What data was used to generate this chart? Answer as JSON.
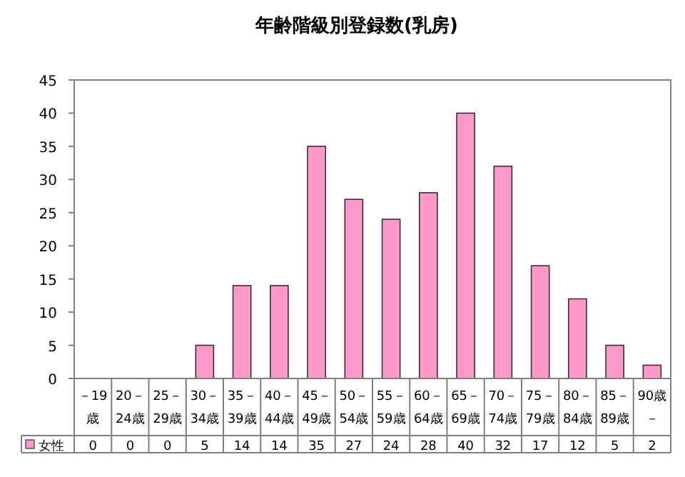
{
  "chart_data": {
    "type": "bar",
    "title": "年齢階級別登録数(乳房)",
    "categories": [
      "－19歳",
      "20－24歳",
      "25－29歳",
      "30－34歳",
      "35－39歳",
      "40－44歳",
      "45－49歳",
      "50－54歳",
      "55－59歳",
      "60－64歳",
      "65－69歳",
      "70－74歳",
      "75－79歳",
      "80－84歳",
      "85－89歳",
      "90歳－"
    ],
    "series": [
      {
        "name": "女性",
        "color": "#ff99cc",
        "values": [
          0,
          0,
          0,
          5,
          14,
          14,
          35,
          27,
          24,
          28,
          40,
          32,
          17,
          12,
          5,
          2
        ]
      }
    ],
    "ylim": [
      0,
      45
    ],
    "yticks": [
      0,
      5,
      10,
      15,
      20,
      25,
      30,
      35,
      40,
      45
    ],
    "grid": false,
    "legend": "bottom",
    "data_labels": true
  }
}
